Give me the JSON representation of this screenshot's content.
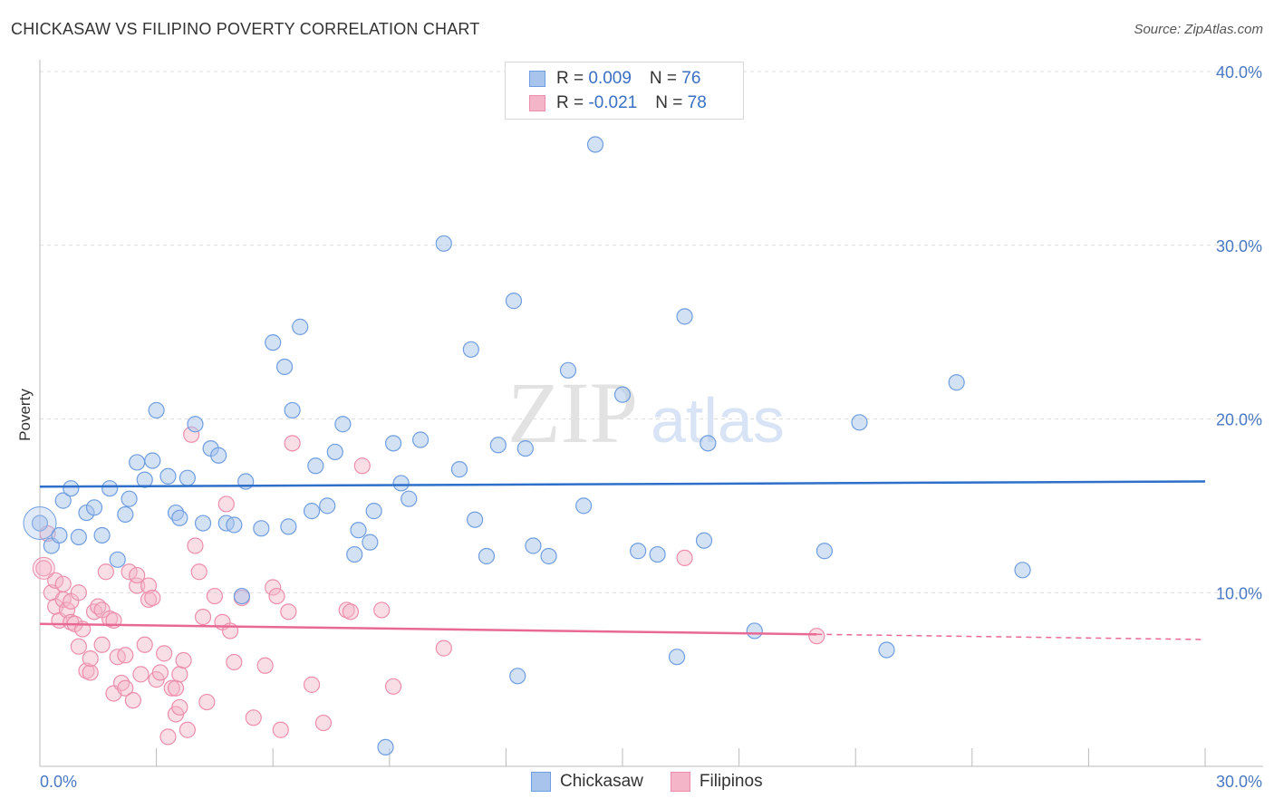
{
  "header": {
    "title": "CHICKASAW VS FILIPINO POVERTY CORRELATION CHART",
    "source": "Source: ZipAtlas.com"
  },
  "legend": {
    "rows": [
      {
        "r_label": "R = ",
        "r_value": "0.009",
        "n_label": "N = ",
        "n_value": "76"
      },
      {
        "r_label": "R = ",
        "r_value": "-0.021",
        "n_label": "N = ",
        "n_value": "78"
      }
    ]
  },
  "bottom_legend": {
    "items": [
      "Chickasaw",
      "Filipinos"
    ]
  },
  "watermark": {
    "zip": "ZIP",
    "atlas": "atlas"
  },
  "colors": {
    "blue_fill": "#a8c4ec",
    "blue_stroke": "#6f9ee0",
    "blue_line": "#2e6fc9",
    "pink_fill": "#f5b5c8",
    "pink_stroke": "#ec8eab",
    "pink_line": "#e86a94",
    "grid": "#dcdcdc",
    "tick": "#4a78c2"
  },
  "chart_data": {
    "type": "scatter",
    "title": "CHICKASAW VS FILIPINO POVERTY CORRELATION CHART",
    "xlabel": "",
    "ylabel": "Poverty",
    "xlim": [
      0,
      30
    ],
    "ylim": [
      0,
      40
    ],
    "x_tick_labels": [
      "0.0%",
      "30.0%"
    ],
    "y_ticks": [
      10,
      20,
      30,
      40
    ],
    "y_tick_labels": [
      "10.0%",
      "20.0%",
      "30.0%",
      "40.0%"
    ],
    "grid": true,
    "legend_position": "top-center",
    "series": [
      {
        "name": "Chickasaw",
        "color": "#a8c4ec",
        "trend": {
          "x": [
            0,
            30
          ],
          "y": [
            16.1,
            16.4
          ],
          "dashed_from": null
        },
        "points": [
          [
            0.0,
            14.0
          ],
          [
            0.3,
            12.7
          ],
          [
            0.5,
            13.3
          ],
          [
            0.6,
            15.3
          ],
          [
            0.8,
            16.0
          ],
          [
            1.0,
            13.2
          ],
          [
            1.2,
            14.6
          ],
          [
            1.4,
            14.9
          ],
          [
            1.6,
            13.3
          ],
          [
            1.8,
            16.0
          ],
          [
            2.0,
            11.9
          ],
          [
            2.2,
            14.5
          ],
          [
            2.3,
            15.4
          ],
          [
            2.5,
            17.5
          ],
          [
            2.7,
            16.5
          ],
          [
            2.9,
            17.6
          ],
          [
            3.0,
            20.5
          ],
          [
            3.3,
            16.7
          ],
          [
            3.5,
            14.6
          ],
          [
            3.6,
            14.3
          ],
          [
            3.8,
            16.6
          ],
          [
            4.0,
            19.7
          ],
          [
            4.2,
            14.0
          ],
          [
            4.4,
            18.3
          ],
          [
            4.6,
            17.9
          ],
          [
            4.8,
            14.0
          ],
          [
            5.0,
            13.9
          ],
          [
            5.2,
            9.8
          ],
          [
            5.3,
            16.4
          ],
          [
            5.7,
            13.7
          ],
          [
            6.0,
            24.4
          ],
          [
            6.3,
            23.0
          ],
          [
            6.4,
            13.8
          ],
          [
            6.5,
            20.5
          ],
          [
            6.7,
            25.3
          ],
          [
            7.0,
            14.7
          ],
          [
            7.1,
            17.3
          ],
          [
            7.4,
            15.0
          ],
          [
            7.6,
            18.1
          ],
          [
            7.8,
            19.7
          ],
          [
            8.1,
            12.2
          ],
          [
            8.2,
            13.6
          ],
          [
            8.5,
            12.9
          ],
          [
            8.6,
            14.7
          ],
          [
            8.9,
            1.1
          ],
          [
            9.1,
            18.6
          ],
          [
            9.3,
            16.3
          ],
          [
            9.5,
            15.4
          ],
          [
            9.8,
            18.8
          ],
          [
            10.4,
            30.1
          ],
          [
            10.8,
            17.1
          ],
          [
            11.1,
            24.0
          ],
          [
            11.2,
            14.2
          ],
          [
            11.5,
            12.1
          ],
          [
            11.8,
            18.5
          ],
          [
            12.2,
            26.8
          ],
          [
            12.3,
            5.2
          ],
          [
            12.5,
            18.3
          ],
          [
            12.7,
            12.7
          ],
          [
            13.1,
            12.1
          ],
          [
            13.6,
            22.8
          ],
          [
            14.0,
            15.0
          ],
          [
            14.3,
            35.8
          ],
          [
            15.0,
            21.4
          ],
          [
            15.4,
            12.4
          ],
          [
            15.9,
            12.2
          ],
          [
            16.4,
            6.3
          ],
          [
            16.6,
            25.9
          ],
          [
            17.1,
            13.0
          ],
          [
            17.2,
            18.6
          ],
          [
            18.4,
            7.8
          ],
          [
            20.2,
            12.4
          ],
          [
            21.1,
            19.8
          ],
          [
            21.8,
            6.7
          ],
          [
            23.6,
            22.1
          ],
          [
            25.3,
            11.3
          ]
        ]
      },
      {
        "name": "Filipinos",
        "color": "#f5b5c8",
        "trend": {
          "x": [
            0,
            30
          ],
          "y": [
            8.2,
            7.3
          ],
          "dashed_from": 20
        },
        "points": [
          [
            0.1,
            11.4
          ],
          [
            0.2,
            13.4
          ],
          [
            0.3,
            10.0
          ],
          [
            0.4,
            10.7
          ],
          [
            0.4,
            9.2
          ],
          [
            0.5,
            8.4
          ],
          [
            0.6,
            9.6
          ],
          [
            0.6,
            10.5
          ],
          [
            0.7,
            9.0
          ],
          [
            0.8,
            8.3
          ],
          [
            0.8,
            9.5
          ],
          [
            0.9,
            8.2
          ],
          [
            1.0,
            6.9
          ],
          [
            1.0,
            10.0
          ],
          [
            1.1,
            7.9
          ],
          [
            1.2,
            5.5
          ],
          [
            1.3,
            5.4
          ],
          [
            1.3,
            6.2
          ],
          [
            1.4,
            8.9
          ],
          [
            1.5,
            9.2
          ],
          [
            1.6,
            9.0
          ],
          [
            1.6,
            7.0
          ],
          [
            1.7,
            11.2
          ],
          [
            1.8,
            8.5
          ],
          [
            1.9,
            8.4
          ],
          [
            1.9,
            4.2
          ],
          [
            2.0,
            6.3
          ],
          [
            2.1,
            4.8
          ],
          [
            2.2,
            4.5
          ],
          [
            2.2,
            6.4
          ],
          [
            2.3,
            11.2
          ],
          [
            2.4,
            3.8
          ],
          [
            2.5,
            10.4
          ],
          [
            2.5,
            11.0
          ],
          [
            2.6,
            5.3
          ],
          [
            2.7,
            7.0
          ],
          [
            2.8,
            9.6
          ],
          [
            2.8,
            10.4
          ],
          [
            2.9,
            9.7
          ],
          [
            3.0,
            5.0
          ],
          [
            3.1,
            5.4
          ],
          [
            3.2,
            6.5
          ],
          [
            3.3,
            1.7
          ],
          [
            3.4,
            4.5
          ],
          [
            3.5,
            3.0
          ],
          [
            3.5,
            4.5
          ],
          [
            3.6,
            5.3
          ],
          [
            3.6,
            3.4
          ],
          [
            3.7,
            6.1
          ],
          [
            3.8,
            2.1
          ],
          [
            3.9,
            19.1
          ],
          [
            4.0,
            12.7
          ],
          [
            4.1,
            11.2
          ],
          [
            4.2,
            8.6
          ],
          [
            4.3,
            3.7
          ],
          [
            4.5,
            9.8
          ],
          [
            4.7,
            8.3
          ],
          [
            4.8,
            15.1
          ],
          [
            4.9,
            7.8
          ],
          [
            5.0,
            6.0
          ],
          [
            5.2,
            9.7
          ],
          [
            5.5,
            2.8
          ],
          [
            5.8,
            5.8
          ],
          [
            6.0,
            10.3
          ],
          [
            6.1,
            9.8
          ],
          [
            6.2,
            2.1
          ],
          [
            6.4,
            8.9
          ],
          [
            6.5,
            18.6
          ],
          [
            7.0,
            4.7
          ],
          [
            7.3,
            2.5
          ],
          [
            7.9,
            9.0
          ],
          [
            8.0,
            8.9
          ],
          [
            8.3,
            17.3
          ],
          [
            8.8,
            9.0
          ],
          [
            9.1,
            4.6
          ],
          [
            10.4,
            6.8
          ],
          [
            16.6,
            12.0
          ],
          [
            20.0,
            7.5
          ]
        ]
      }
    ]
  }
}
